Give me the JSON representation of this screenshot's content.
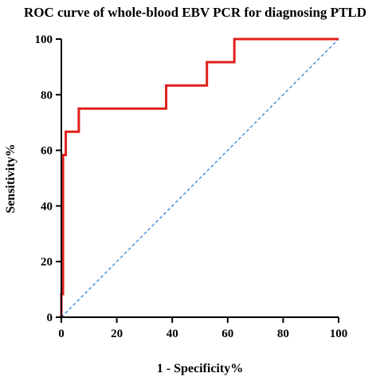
{
  "chart_data": {
    "type": "line",
    "title": "ROC curve of whole-blood EBV PCR for diagnosing PTLD",
    "xlabel": "1 - Specificity%",
    "ylabel": "Sensitivity%",
    "xlim": [
      0,
      100
    ],
    "ylim": [
      0,
      100
    ],
    "xticks": [
      "0",
      "20",
      "40",
      "60",
      "80",
      "100"
    ],
    "yticks": [
      "0",
      "20",
      "40",
      "60",
      "80",
      "100"
    ],
    "grid": false,
    "legend": "none",
    "series": [
      {
        "style": "solid",
        "color": "#e0201b",
        "x": [
          0,
          0,
          0.6,
          0.6,
          1.6,
          1.6,
          6.3,
          6.3,
          37.8,
          37.8,
          52.5,
          52.5,
          62.4,
          62.4,
          100
        ],
        "y": [
          0,
          8.3,
          8.3,
          58.3,
          58.3,
          66.7,
          66.7,
          75,
          75,
          83.3,
          83.3,
          91.7,
          91.7,
          100,
          100
        ]
      },
      {
        "style": "dashed",
        "color": "#4a90d9",
        "x": [
          0,
          100
        ],
        "y": [
          0,
          100
        ]
      }
    ]
  }
}
